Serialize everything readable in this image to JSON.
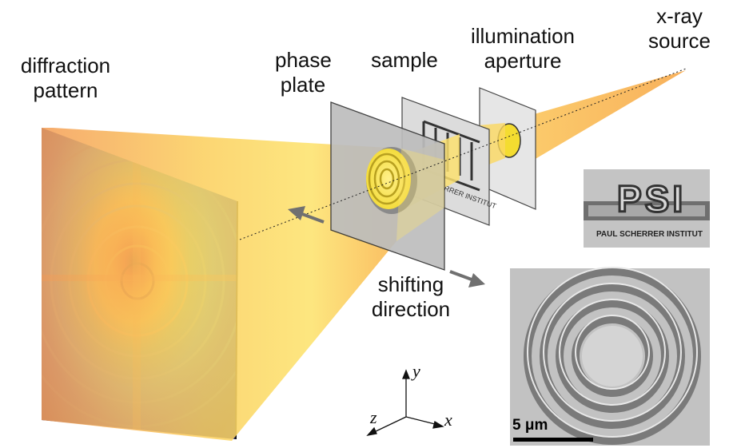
{
  "labels": {
    "diffraction_pattern": [
      "diffraction",
      "pattern"
    ],
    "phase_plate": [
      "phase",
      "plate"
    ],
    "sample": "sample",
    "illumination_aperture": [
      "illumination",
      "aperture"
    ],
    "xray_source": [
      "x-ray",
      "source"
    ],
    "shifting_direction": [
      "shifting",
      "direction"
    ]
  },
  "axes": {
    "x": "x",
    "y": "y",
    "z": "z"
  },
  "logo": {
    "big": "PSI",
    "small": "PAUL SCHERRER INSTITUT"
  },
  "scale_bar": "5 μm",
  "colors": {
    "beam": "#f7b04a",
    "beam_light": "#fde48a",
    "plate": "#c8c8c8",
    "arrow": "#707070"
  }
}
